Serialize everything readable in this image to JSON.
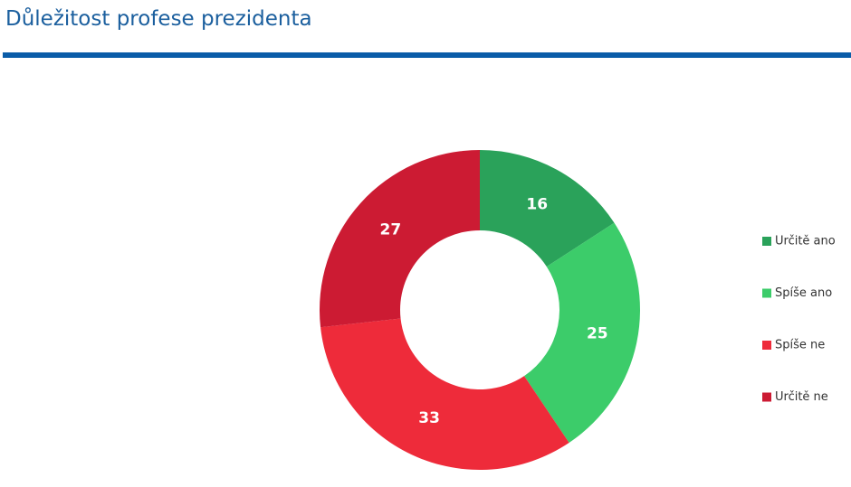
{
  "chart_data": {
    "type": "donut",
    "title": "Důležitost profese prezidenta",
    "categories": [
      "Určitě ano",
      "Spíše ano",
      "Spíše ne",
      "Určitě ne"
    ],
    "values": [
      16,
      25,
      33,
      27
    ],
    "colors": [
      "#2aa25a",
      "#3ccc6a",
      "#ee2b3a",
      "#cc1b33"
    ],
    "legend": "right"
  }
}
